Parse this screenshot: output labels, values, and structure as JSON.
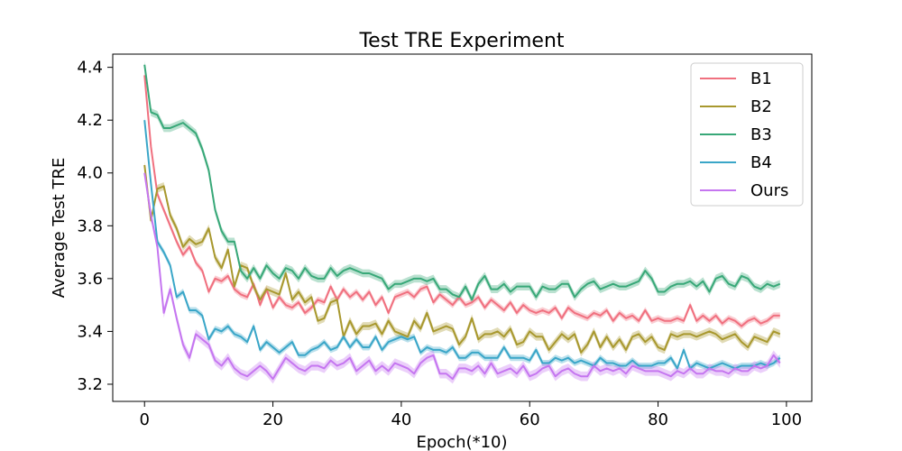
{
  "chart_data": {
    "type": "line",
    "title": "Test TRE Experiment",
    "xlabel": "Epoch(*10)",
    "ylabel": "Average Test TRE",
    "xlim": [
      -4.95,
      103.95
    ],
    "ylim": [
      3.135,
      4.45
    ],
    "xticks": [
      0,
      20,
      40,
      60,
      80,
      100
    ],
    "yticks": [
      3.2,
      3.4,
      3.6,
      3.8,
      4.0,
      4.2,
      4.4
    ],
    "ytick_labels": [
      "3.2",
      "3.4",
      "3.6",
      "3.8",
      "4.0",
      "4.2",
      "4.4"
    ],
    "grid": false,
    "legend_position": "top-right",
    "series": [
      {
        "name": "B1",
        "color": "#f0707f",
        "band": 0.012,
        "values": [
          4.37,
          4.1,
          3.92,
          3.86,
          3.8,
          3.74,
          3.69,
          3.72,
          3.66,
          3.63,
          3.55,
          3.6,
          3.59,
          3.61,
          3.56,
          3.54,
          3.53,
          3.58,
          3.5,
          3.56,
          3.49,
          3.53,
          3.5,
          3.49,
          3.51,
          3.47,
          3.49,
          3.52,
          3.51,
          3.57,
          3.52,
          3.56,
          3.53,
          3.55,
          3.52,
          3.55,
          3.5,
          3.53,
          3.47,
          3.53,
          3.54,
          3.55,
          3.53,
          3.56,
          3.57,
          3.51,
          3.54,
          3.52,
          3.5,
          3.53,
          3.5,
          3.51,
          3.53,
          3.49,
          3.52,
          3.5,
          3.48,
          3.51,
          3.47,
          3.5,
          3.48,
          3.47,
          3.48,
          3.47,
          3.49,
          3.45,
          3.49,
          3.47,
          3.46,
          3.45,
          3.47,
          3.46,
          3.48,
          3.44,
          3.47,
          3.45,
          3.46,
          3.44,
          3.48,
          3.44,
          3.45,
          3.44,
          3.44,
          3.45,
          3.44,
          3.5,
          3.44,
          3.46,
          3.44,
          3.46,
          3.43,
          3.45,
          3.44,
          3.42,
          3.44,
          3.45,
          3.43,
          3.44,
          3.46,
          3.46
        ]
      },
      {
        "name": "B2",
        "color": "#a8982e",
        "band": 0.015,
        "values": [
          4.03,
          3.82,
          3.94,
          3.95,
          3.84,
          3.79,
          3.72,
          3.75,
          3.73,
          3.74,
          3.79,
          3.68,
          3.64,
          3.71,
          3.57,
          3.65,
          3.64,
          3.57,
          3.52,
          3.56,
          3.55,
          3.54,
          3.62,
          3.52,
          3.55,
          3.51,
          3.53,
          3.44,
          3.45,
          3.51,
          3.52,
          3.38,
          3.44,
          3.39,
          3.42,
          3.42,
          3.43,
          3.39,
          3.44,
          3.4,
          3.39,
          3.38,
          3.44,
          3.41,
          3.47,
          3.4,
          3.41,
          3.42,
          3.41,
          3.35,
          3.38,
          3.45,
          3.37,
          3.39,
          3.39,
          3.4,
          3.38,
          3.41,
          3.35,
          3.36,
          3.4,
          3.38,
          3.38,
          3.33,
          3.36,
          3.39,
          3.37,
          3.39,
          3.32,
          3.35,
          3.4,
          3.34,
          3.38,
          3.34,
          3.37,
          3.33,
          3.38,
          3.39,
          3.36,
          3.38,
          3.34,
          3.33,
          3.39,
          3.38,
          3.39,
          3.39,
          3.38,
          3.39,
          3.4,
          3.39,
          3.37,
          3.38,
          3.39,
          3.36,
          3.34,
          3.38,
          3.37,
          3.36,
          3.4,
          3.39
        ]
      },
      {
        "name": "B3",
        "color": "#38a878",
        "band": 0.015,
        "values": [
          4.41,
          4.23,
          4.22,
          4.17,
          4.17,
          4.18,
          4.19,
          4.17,
          4.15,
          4.09,
          4.01,
          3.86,
          3.78,
          3.74,
          3.74,
          3.63,
          3.6,
          3.64,
          3.6,
          3.65,
          3.62,
          3.6,
          3.64,
          3.63,
          3.6,
          3.64,
          3.61,
          3.6,
          3.6,
          3.64,
          3.61,
          3.63,
          3.64,
          3.63,
          3.62,
          3.62,
          3.61,
          3.6,
          3.56,
          3.58,
          3.58,
          3.59,
          3.6,
          3.6,
          3.59,
          3.6,
          3.56,
          3.56,
          3.54,
          3.53,
          3.57,
          3.52,
          3.58,
          3.61,
          3.56,
          3.56,
          3.58,
          3.55,
          3.57,
          3.57,
          3.57,
          3.53,
          3.57,
          3.56,
          3.56,
          3.58,
          3.58,
          3.53,
          3.56,
          3.58,
          3.59,
          3.56,
          3.57,
          3.58,
          3.57,
          3.57,
          3.58,
          3.59,
          3.63,
          3.6,
          3.55,
          3.55,
          3.57,
          3.58,
          3.58,
          3.59,
          3.57,
          3.59,
          3.55,
          3.6,
          3.61,
          3.58,
          3.57,
          3.61,
          3.6,
          3.57,
          3.56,
          3.58,
          3.57,
          3.58
        ]
      },
      {
        "name": "B4",
        "color": "#3aa6c8",
        "band": 0.012,
        "values": [
          4.2,
          3.96,
          3.74,
          3.7,
          3.65,
          3.53,
          3.55,
          3.48,
          3.48,
          3.46,
          3.37,
          3.41,
          3.4,
          3.42,
          3.39,
          3.38,
          3.36,
          3.42,
          3.33,
          3.36,
          3.34,
          3.32,
          3.34,
          3.36,
          3.31,
          3.31,
          3.33,
          3.34,
          3.36,
          3.33,
          3.34,
          3.38,
          3.34,
          3.37,
          3.34,
          3.34,
          3.38,
          3.33,
          3.36,
          3.37,
          3.38,
          3.37,
          3.38,
          3.32,
          3.34,
          3.33,
          3.33,
          3.32,
          3.34,
          3.3,
          3.3,
          3.32,
          3.32,
          3.3,
          3.3,
          3.3,
          3.34,
          3.3,
          3.3,
          3.3,
          3.29,
          3.33,
          3.28,
          3.28,
          3.3,
          3.29,
          3.3,
          3.28,
          3.29,
          3.28,
          3.27,
          3.3,
          3.28,
          3.28,
          3.27,
          3.27,
          3.29,
          3.27,
          3.27,
          3.27,
          3.28,
          3.28,
          3.3,
          3.26,
          3.33,
          3.26,
          3.28,
          3.27,
          3.26,
          3.27,
          3.28,
          3.27,
          3.26,
          3.27,
          3.27,
          3.27,
          3.28,
          3.27,
          3.28,
          3.3
        ]
      },
      {
        "name": "Ours",
        "color": "#c576f0",
        "band": 0.018,
        "values": [
          4.0,
          3.84,
          3.72,
          3.47,
          3.56,
          3.45,
          3.35,
          3.3,
          3.39,
          3.37,
          3.35,
          3.29,
          3.27,
          3.3,
          3.26,
          3.24,
          3.23,
          3.25,
          3.27,
          3.25,
          3.22,
          3.26,
          3.3,
          3.28,
          3.26,
          3.25,
          3.27,
          3.27,
          3.26,
          3.29,
          3.27,
          3.28,
          3.3,
          3.25,
          3.27,
          3.29,
          3.25,
          3.27,
          3.25,
          3.28,
          3.27,
          3.26,
          3.24,
          3.28,
          3.3,
          3.31,
          3.24,
          3.24,
          3.22,
          3.26,
          3.26,
          3.25,
          3.27,
          3.24,
          3.28,
          3.24,
          3.25,
          3.26,
          3.24,
          3.27,
          3.23,
          3.24,
          3.26,
          3.27,
          3.23,
          3.25,
          3.26,
          3.24,
          3.23,
          3.23,
          3.27,
          3.25,
          3.26,
          3.25,
          3.26,
          3.24,
          3.27,
          3.26,
          3.25,
          3.25,
          3.25,
          3.24,
          3.23,
          3.25,
          3.24,
          3.26,
          3.24,
          3.24,
          3.26,
          3.25,
          3.25,
          3.24,
          3.26,
          3.25,
          3.25,
          3.27,
          3.26,
          3.27,
          3.31,
          3.28
        ]
      }
    ]
  }
}
